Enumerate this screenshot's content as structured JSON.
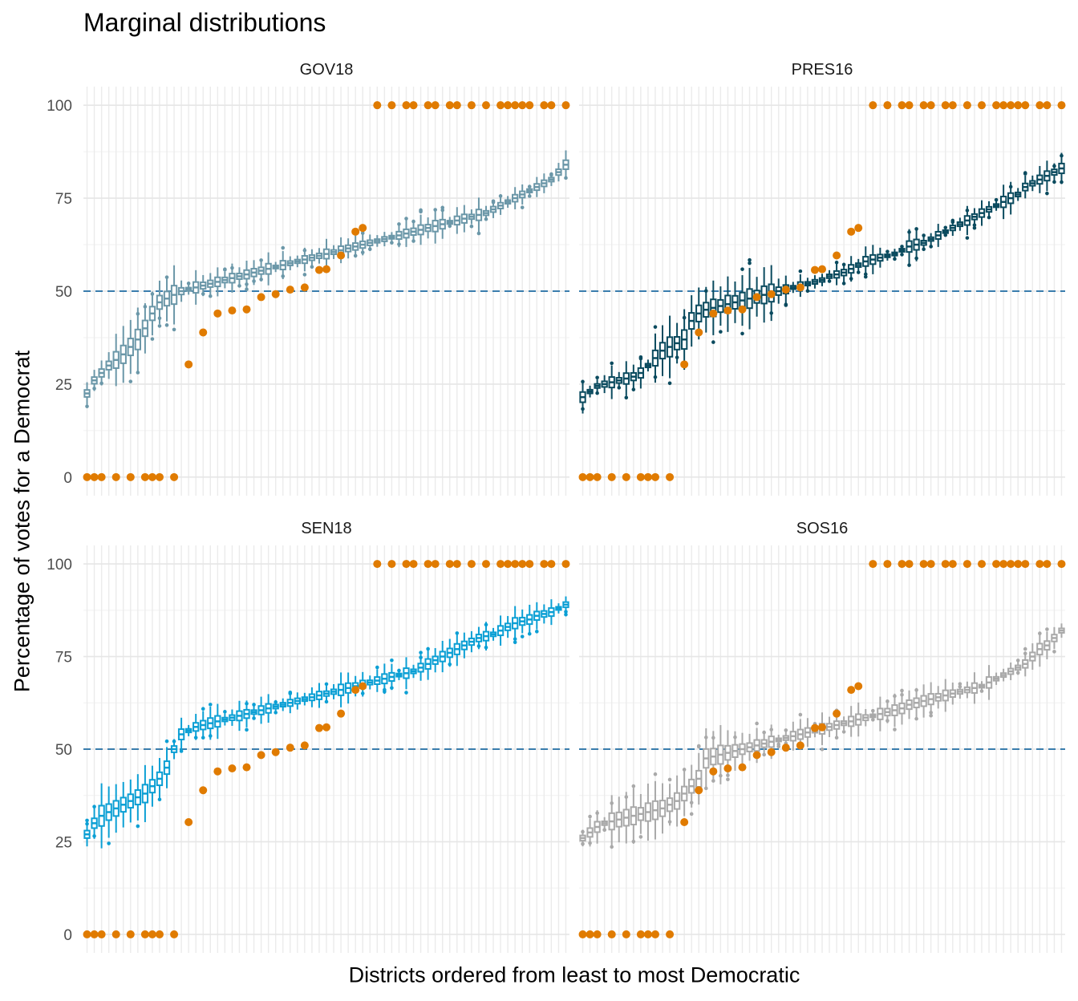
{
  "chart_title": "Marginal distributions",
  "x_label": "Districts ordered from least to most Democratic",
  "y_label": "Percentage of votes for a Democrat",
  "chart_data": {
    "type": "boxplot",
    "title": "Marginal distributions",
    "xlabel": "Districts ordered from least to most Democratic",
    "ylabel": "Percentage of votes for a Democrat",
    "ylim": [
      -5,
      105
    ],
    "yticks": [
      0,
      25,
      50,
      75,
      100
    ],
    "n_districts": 67,
    "reference_line": {
      "y": 50,
      "style": "dashed",
      "color": "#3a7dad"
    },
    "observed_color": "#e07b00",
    "observed_points": [
      {
        "x": 1,
        "y": 0
      },
      {
        "x": 2,
        "y": 0
      },
      {
        "x": 3,
        "y": 0
      },
      {
        "x": 5,
        "y": 0
      },
      {
        "x": 7,
        "y": 0
      },
      {
        "x": 9,
        "y": 0
      },
      {
        "x": 10,
        "y": 0
      },
      {
        "x": 11,
        "y": 0
      },
      {
        "x": 13,
        "y": 0
      },
      {
        "x": 15,
        "y": 30.3
      },
      {
        "x": 17,
        "y": 38.9
      },
      {
        "x": 19,
        "y": 44.0
      },
      {
        "x": 21,
        "y": 44.8
      },
      {
        "x": 23,
        "y": 45.1
      },
      {
        "x": 25,
        "y": 48.4
      },
      {
        "x": 27,
        "y": 49.2
      },
      {
        "x": 29,
        "y": 50.4
      },
      {
        "x": 31,
        "y": 51.0
      },
      {
        "x": 33,
        "y": 55.7
      },
      {
        "x": 34,
        "y": 55.9
      },
      {
        "x": 36,
        "y": 59.6
      },
      {
        "x": 38,
        "y": 66.0
      },
      {
        "x": 39,
        "y": 67.0
      },
      {
        "x": 41,
        "y": 100
      },
      {
        "x": 43,
        "y": 100
      },
      {
        "x": 45,
        "y": 100
      },
      {
        "x": 46,
        "y": 100
      },
      {
        "x": 48,
        "y": 100
      },
      {
        "x": 49,
        "y": 100
      },
      {
        "x": 51,
        "y": 100
      },
      {
        "x": 52,
        "y": 100
      },
      {
        "x": 54,
        "y": 100
      },
      {
        "x": 56,
        "y": 100
      },
      {
        "x": 58,
        "y": 100
      },
      {
        "x": 59,
        "y": 100
      },
      {
        "x": 60,
        "y": 100
      },
      {
        "x": 61,
        "y": 100
      },
      {
        "x": 62,
        "y": 100
      },
      {
        "x": 64,
        "y": 100
      },
      {
        "x": 65,
        "y": 100
      },
      {
        "x": 67,
        "y": 100
      }
    ],
    "panels": [
      {
        "name": "GOV18",
        "color": "#6b97a8",
        "medians": [
          22.5,
          26,
          28,
          30,
          31.5,
          33,
          35,
          37,
          40,
          44,
          47,
          48,
          49,
          50,
          50.5,
          51,
          51.5,
          52,
          52.5,
          53,
          53.5,
          54,
          54.5,
          55,
          55.5,
          56,
          56.5,
          57,
          57.5,
          58,
          58.5,
          59,
          59.5,
          60,
          60.5,
          61,
          61.5,
          62,
          62.5,
          63,
          63.5,
          64,
          64.5,
          65,
          65.5,
          66,
          66.5,
          67,
          67.5,
          68,
          68.5,
          69,
          69.5,
          70,
          70.5,
          71,
          72,
          73,
          74,
          75,
          76,
          77,
          78,
          79,
          80,
          82,
          84
        ]
      },
      {
        "name": "PRES16",
        "color": "#0a4a5e",
        "medians": [
          21.5,
          23,
          24.5,
          25,
          25.5,
          26,
          26.5,
          27,
          28,
          30,
          32,
          34,
          35,
          36,
          37,
          42,
          44,
          45,
          45.5,
          46,
          46.5,
          47,
          47.5,
          48,
          48.5,
          49,
          49.5,
          50,
          50.5,
          51,
          51.5,
          52,
          52.5,
          53,
          54,
          54.5,
          55,
          56,
          57,
          58,
          58.5,
          59,
          59.5,
          60,
          61,
          62,
          62.5,
          63,
          64,
          65,
          66,
          67,
          68,
          69,
          70,
          71,
          72,
          73,
          74,
          75,
          76,
          78,
          79,
          80,
          81,
          82,
          83
        ]
      },
      {
        "name": "SEN18",
        "color": "#0b9fd4",
        "medians": [
          27,
          30,
          32,
          33,
          34,
          35,
          36,
          37,
          38,
          40,
          42,
          45,
          50,
          54,
          55,
          56,
          56.5,
          57,
          57.5,
          58,
          58.5,
          59,
          59.5,
          60,
          60.5,
          61,
          61.5,
          62,
          62.5,
          63,
          63.5,
          64,
          64.5,
          65,
          65.5,
          66,
          66.5,
          67,
          67.5,
          68,
          68.5,
          69,
          69.5,
          70,
          70.5,
          71,
          72,
          73,
          74,
          75,
          76,
          77,
          78,
          79,
          80,
          80.5,
          81,
          82,
          83,
          84,
          84.5,
          85,
          86,
          86.5,
          87,
          88,
          89
        ]
      },
      {
        "name": "SOS16",
        "color": "#a9a9a9",
        "medians": [
          26,
          27.5,
          29,
          30,
          30.5,
          31,
          31.5,
          32,
          32.5,
          33,
          33.5,
          34,
          35,
          36,
          38,
          40,
          42,
          47.5,
          48,
          48.5,
          49,
          49.5,
          50,
          50.5,
          51,
          51.5,
          52,
          52.5,
          53,
          53.5,
          54,
          54.5,
          55,
          55.5,
          56,
          56.5,
          57,
          57.5,
          58,
          58.5,
          59,
          59.5,
          60,
          60.5,
          61,
          62,
          62.5,
          63,
          63.5,
          64,
          64.5,
          65,
          65.5,
          66,
          66.5,
          67,
          68,
          69,
          70,
          71,
          72,
          73,
          75,
          77,
          78,
          80,
          82
        ]
      }
    ]
  }
}
